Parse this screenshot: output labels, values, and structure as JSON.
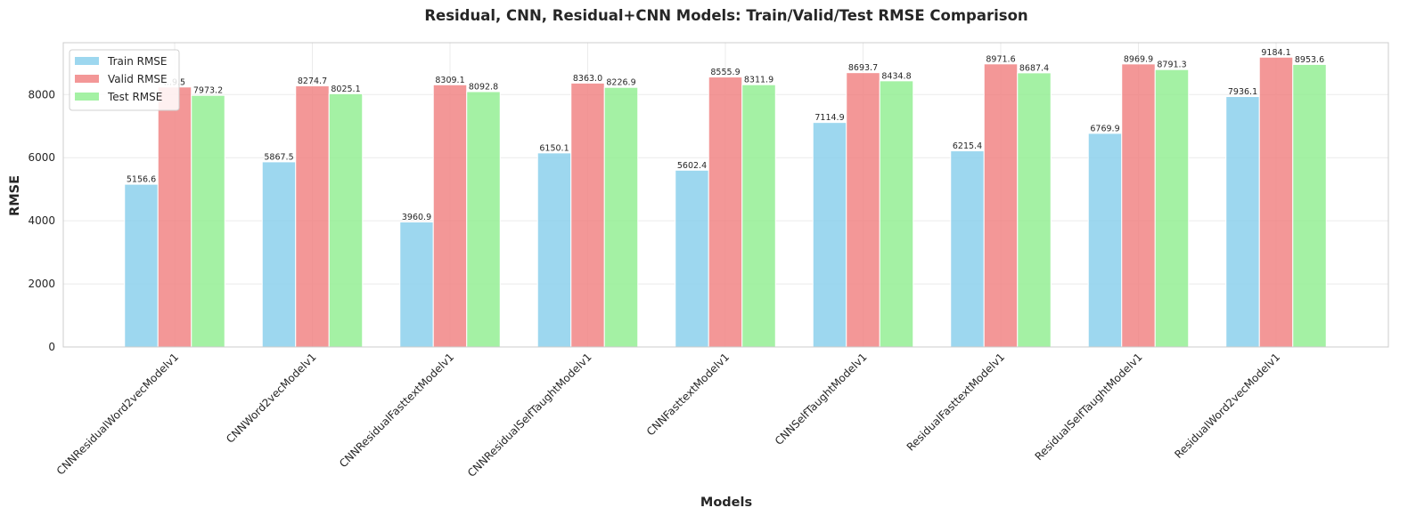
{
  "chart_data": {
    "type": "bar",
    "title": "Residual, CNN, Residual+CNN Models: Train/Valid/Test RMSE Comparison",
    "xlabel": "Models",
    "ylabel": "RMSE",
    "ylim": [
      0,
      9643
    ],
    "yticks": [
      "0",
      "2000",
      "4000",
      "6000",
      "8000"
    ],
    "grid": true,
    "legend_position": "top-left",
    "categories": [
      "CNNResidualWord2vecModelv1",
      "CNNWord2vecModelv1",
      "CNNResidualFasttextModelv1",
      "CNNResidualSelfTaughtModelv1",
      "CNNFasttextModelv1",
      "CNNSelfTaughtModelv1",
      "ResidualFasttextModelv1",
      "ResidualSelfTaughtModelv1",
      "ResidualWord2vecModelv1"
    ],
    "series": [
      {
        "name": "Train RMSE",
        "color": "#87ceeb",
        "values": [
          5156.6,
          5867.5,
          3960.9,
          6150.1,
          5602.4,
          7114.9,
          6215.4,
          6769.9,
          7936.1
        ],
        "labels": [
          "5156.6",
          "5867.5",
          "3960.9",
          "6150.1",
          "5602.4",
          "7114.9",
          "6215.4",
          "6769.9",
          "7936.1"
        ]
      },
      {
        "name": "Valid RMSE",
        "color": "#f08080",
        "values": [
          8239.5,
          8274.7,
          8309.1,
          8363.0,
          8555.9,
          8693.7,
          8971.6,
          8969.9,
          9184.1
        ],
        "labels": [
          "...9.5",
          "8274.7",
          "8309.1",
          "8363.0",
          "8555.9",
          "8693.7",
          "8971.6",
          "8969.9",
          "9184.1"
        ]
      },
      {
        "name": "Test RMSE",
        "color": "#90ee90",
        "values": [
          7973.2,
          8025.1,
          8092.8,
          8226.9,
          8311.9,
          8434.8,
          8687.4,
          8791.3,
          8953.6
        ],
        "labels": [
          "7973.2",
          "8025.1",
          "8092.8",
          "8226.9",
          "8311.9",
          "8434.8",
          "8687.4",
          "8791.3",
          "8953.6"
        ]
      }
    ]
  }
}
